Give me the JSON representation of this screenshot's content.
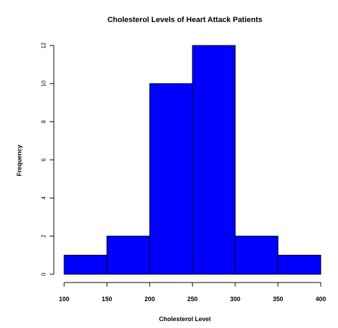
{
  "chart_data": {
    "type": "bar",
    "title": "Cholesterol Levels of Heart Attack Patients",
    "xlabel": "Cholesterol Level",
    "ylabel": "Frequency",
    "bin_edges": [
      100,
      150,
      200,
      250,
      300,
      350,
      400
    ],
    "values": [
      1,
      2,
      10,
      12,
      2,
      1
    ],
    "xlim": [
      100,
      400
    ],
    "ylim": [
      0,
      12
    ],
    "x_ticks": [
      100,
      150,
      200,
      250,
      300,
      350,
      400
    ],
    "y_ticks": [
      0,
      2,
      4,
      6,
      8,
      10,
      12
    ],
    "bar_color": "#0000ff",
    "grid": false,
    "legend": "none"
  }
}
